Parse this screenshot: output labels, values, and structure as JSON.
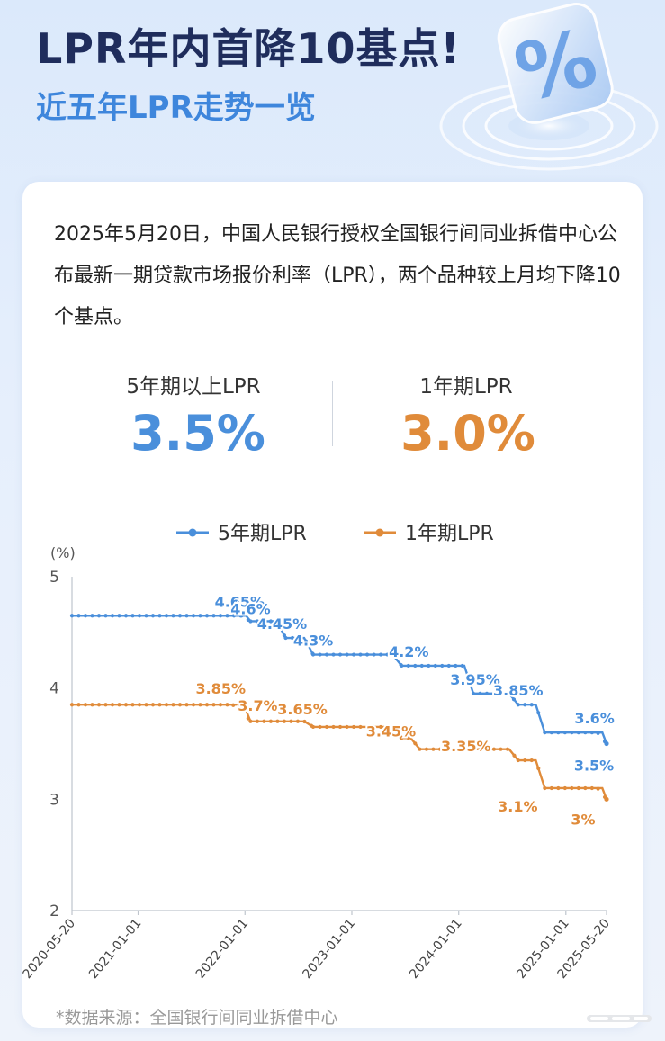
{
  "header": {
    "title": "LPR年内首降10基点!",
    "subtitle": "近五年LPR走势一览"
  },
  "intro_text": "2025年5月20日，中国人民银行授权全国银行间同业拆借中心公布最新一期贷款市场报价利率（LPR），两个品种较上月均下降10个基点。",
  "kpi": {
    "left_label": "5年期以上LPR",
    "left_value": "3.5%",
    "right_label": "1年期LPR",
    "right_value": "3.0%"
  },
  "source": "*数据来源：全国银行间同业拆借中心",
  "colors": {
    "five_year": "#4a8fdb",
    "one_year": "#e08b3a",
    "title": "#1f2d5c",
    "subtitle": "#3e86dc"
  },
  "chart_data": {
    "type": "line",
    "y_unit": "(%)",
    "ylim": [
      2,
      5
    ],
    "yticks": [
      2,
      3,
      4,
      5
    ],
    "xlim": [
      "2020-05-20",
      "2025-05-20"
    ],
    "xticks": [
      "2020-05-20",
      "2021-01-01",
      "2022-01-01",
      "2023-01-01",
      "2024-01-01",
      "2025-01-01",
      "2025-05-20"
    ],
    "grid": false,
    "legend": "top-center",
    "series": [
      {
        "name": "5年期LPR",
        "color": "#4a8fdb",
        "steps": [
          [
            "2020-05-20",
            4.65
          ],
          [
            "2021-12-20",
            4.65
          ],
          [
            "2022-01-20",
            4.6
          ],
          [
            "2022-05-20",
            4.45
          ],
          [
            "2022-08-22",
            4.3
          ],
          [
            "2023-06-20",
            4.2
          ],
          [
            "2024-02-20",
            3.95
          ],
          [
            "2024-07-22",
            3.85
          ],
          [
            "2024-10-21",
            3.6
          ],
          [
            "2025-04-21",
            3.6
          ],
          [
            "2025-05-20",
            3.5
          ]
        ],
        "labels": [
          {
            "date": "2021-12-20",
            "value": 4.65,
            "text": "4.65%"
          },
          {
            "date": "2022-01-20",
            "value": 4.6,
            "text": "4.6%"
          },
          {
            "date": "2022-05-20",
            "value": 4.45,
            "text": "4.45%"
          },
          {
            "date": "2022-08-22",
            "value": 4.3,
            "text": "4.3%"
          },
          {
            "date": "2023-06-20",
            "value": 4.2,
            "text": "4.2%"
          },
          {
            "date": "2024-02-20",
            "value": 3.95,
            "text": "3.95%"
          },
          {
            "date": "2024-07-22",
            "value": 3.85,
            "text": "3.85%"
          },
          {
            "date": "2025-04-21",
            "value": 3.6,
            "text": "3.6%"
          },
          {
            "date": "2025-05-20",
            "value": 3.5,
            "text": "3.5%"
          }
        ]
      },
      {
        "name": "1年期LPR",
        "color": "#e08b3a",
        "steps": [
          [
            "2020-05-20",
            3.85
          ],
          [
            "2021-11-22",
            3.85
          ],
          [
            "2021-12-20",
            3.8
          ],
          [
            "2022-01-20",
            3.7
          ],
          [
            "2022-08-22",
            3.65
          ],
          [
            "2023-06-20",
            3.55
          ],
          [
            "2023-08-21",
            3.45
          ],
          [
            "2024-07-22",
            3.35
          ],
          [
            "2024-10-21",
            3.1
          ],
          [
            "2025-04-21",
            3.1
          ],
          [
            "2025-05-20",
            3.0
          ]
        ],
        "labels": [
          {
            "date": "2021-11-22",
            "value": 3.85,
            "text": "3.85%"
          },
          {
            "date": "2022-01-20",
            "value": 3.7,
            "text": "3.7%"
          },
          {
            "date": "2022-08-22",
            "value": 3.65,
            "text": "3.65%"
          },
          {
            "date": "2023-08-21",
            "value": 3.45,
            "text": "3.45%"
          },
          {
            "date": "2024-07-22",
            "value": 3.35,
            "text": "3.35%"
          },
          {
            "date": "2024-10-21",
            "value": 3.1,
            "text": "3.1%"
          },
          {
            "date": "2025-05-20",
            "value": 3.0,
            "text": "3%"
          }
        ]
      }
    ]
  }
}
